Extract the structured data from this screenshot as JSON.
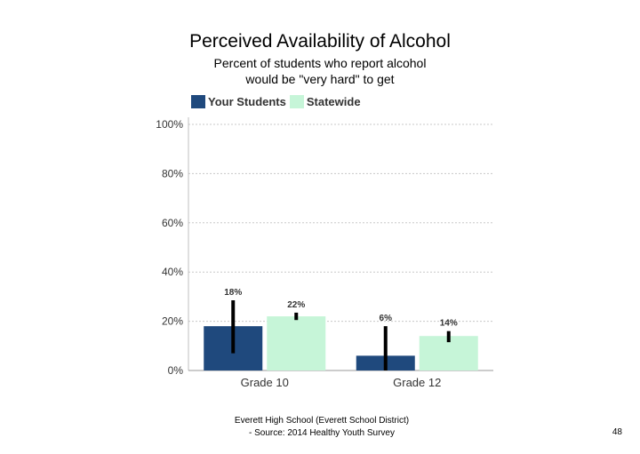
{
  "slide": {
    "page_number": "48"
  },
  "footer": {
    "line1": "Everett High School (Everett School District)",
    "line2": "- Source: 2014 Healthy Youth Survey"
  },
  "chart_data": {
    "type": "bar",
    "title": "Perceived Availability of Alcohol",
    "subtitle_lines": [
      "Percent of students who report alcohol",
      "would be \"very hard\" to get"
    ],
    "categories": [
      "Grade 10",
      "Grade 12"
    ],
    "series": [
      {
        "name": "Your Students",
        "color": "#1f497d",
        "values": [
          18,
          6
        ],
        "labels": [
          "18%",
          "6%"
        ],
        "error_low": [
          7,
          0
        ],
        "error_high": [
          28.5,
          18
        ]
      },
      {
        "name": "Statewide",
        "color": "#c6f5d8",
        "values": [
          22,
          14
        ],
        "labels": [
          "22%",
          "14%"
        ],
        "error_low": [
          20.5,
          11.5
        ],
        "error_high": [
          23.5,
          16
        ]
      }
    ],
    "ylim": [
      0,
      100
    ],
    "yticks": [
      0,
      20,
      40,
      60,
      80,
      100
    ],
    "ytick_labels": [
      "0%",
      "20%",
      "40%",
      "60%",
      "80%",
      "100%"
    ],
    "grid": true,
    "legend_position": "top-left",
    "xlabel": "",
    "ylabel": ""
  }
}
